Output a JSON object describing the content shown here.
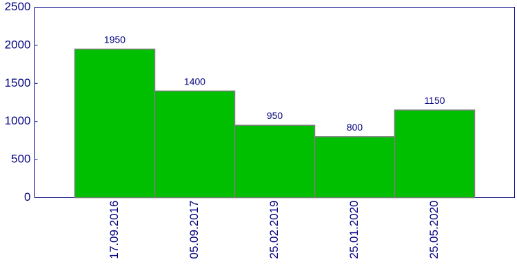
{
  "chart_data": {
    "type": "bar",
    "categories": [
      "17.09.2016",
      "05.09.2017",
      "25.02.2019",
      "25.01.2020",
      "25.05.2020"
    ],
    "values": [
      1950,
      1400,
      950,
      800,
      1150
    ],
    "color": "#00bf00",
    "ylim": [
      0,
      2500
    ],
    "yticks": [
      0,
      500,
      1000,
      1500,
      2000,
      2500
    ]
  }
}
